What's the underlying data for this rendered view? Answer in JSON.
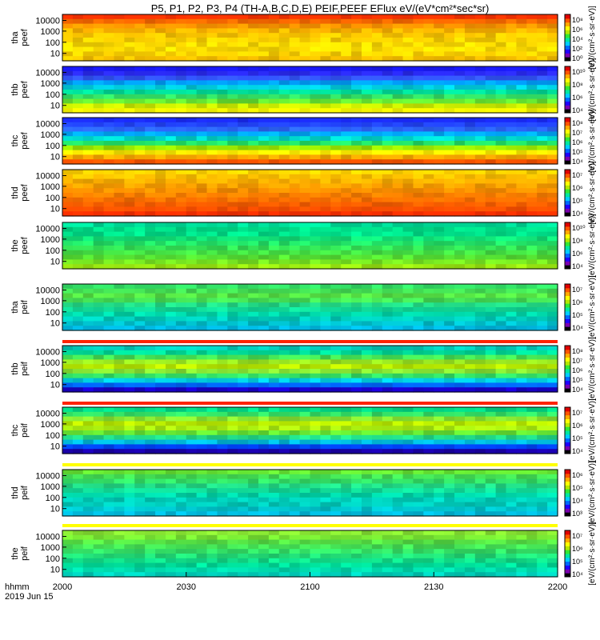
{
  "title": "P5, P1, P2, P3, P4 (TH-A,B,C,D,E) PEIF,PEEF EFlux eV/(eV*cm²*sec*sr)",
  "chart_data": {
    "type": "heatmap",
    "x_ticks": [
      "2000",
      "2030",
      "2100",
      "2130",
      "2200"
    ],
    "x_range": [
      "2000",
      "2200"
    ],
    "x_caption": [
      "hhmm",
      "2019 Jun 15"
    ],
    "colorbar_colors": [
      "#000000",
      "#7a00b0",
      "#1f00ff",
      "#0066ff",
      "#00ccff",
      "#00e6a0",
      "#33e633",
      "#b3e600",
      "#ffff00",
      "#ffaa00",
      "#ff5500",
      "#e00000",
      "#ffffff"
    ],
    "panels": [
      {
        "name": "tha-peef",
        "label": [
          "tha",
          "peef"
        ],
        "y_ticks": [
          "10000",
          "1000",
          "100",
          "10"
        ],
        "cbar_ticks": [
          "10⁸",
          "10⁶",
          "10⁴",
          "10²",
          "10⁰"
        ],
        "unit": "[eV/(cm²·s·sr·eV)]",
        "bands": [
          "#ff3300",
          "#ff6a00",
          "#ff9600",
          "#ffb400",
          "#ffc800",
          "#ffd200",
          "#ffdc00",
          "#ffdc00",
          "#ffd200",
          "#ffc400"
        ]
      },
      {
        "name": "thb-peef",
        "label": [
          "thb",
          "peef"
        ],
        "y_ticks": [
          "10000",
          "1000",
          "100",
          "10"
        ],
        "cbar_ticks": [
          "10¹⁰",
          "10⁸",
          "10⁶",
          "10⁴"
        ],
        "unit": "[eV/(cm²·s·sr·eV)]",
        "bands": [
          "#1a1aff",
          "#2a2af5",
          "#3355ff",
          "#00a0ff",
          "#00ccdd",
          "#00dd99",
          "#33e066",
          "#66e633",
          "#ccee00",
          "#ffff00"
        ]
      },
      {
        "name": "thc-peef",
        "label": [
          "thc",
          "peef"
        ],
        "y_ticks": [
          "10000",
          "1000",
          "100",
          "10"
        ],
        "cbar_ticks": [
          "10⁸",
          "10⁷",
          "10⁶",
          "10⁵",
          "10⁴"
        ],
        "unit": "[eV/(cm²·s·sr·eV)]",
        "bands": [
          "#1a2aff",
          "#2244ff",
          "#2d66ff",
          "#00aaff",
          "#00d8cc",
          "#22e066",
          "#99e600",
          "#ffee00",
          "#ffaa00",
          "#ff5500"
        ]
      },
      {
        "name": "thd-peef",
        "label": [
          "thd",
          "peef"
        ],
        "y_ticks": [
          "10000",
          "1000",
          "100",
          "10"
        ],
        "cbar_ticks": [
          "10⁷",
          "10⁶",
          "10⁵",
          "10⁴"
        ],
        "unit": "[eV/(cm²·s·sr·eV)]",
        "bands": [
          "#ffd000",
          "#ffc000",
          "#ffb000",
          "#ffa000",
          "#ff9000",
          "#ff8000",
          "#ff7000",
          "#ff6000",
          "#ff5000",
          "#ff3000"
        ]
      },
      {
        "name": "the-peef",
        "label": [
          "the",
          "peef"
        ],
        "y_ticks": [
          "10000",
          "1000",
          "100",
          "10"
        ],
        "cbar_ticks": [
          "10¹⁰",
          "10⁸",
          "10⁶",
          "10⁴"
        ],
        "unit": "[eV/(cm²·s·sr·eV)]",
        "bands": [
          "#00dd99",
          "#00dd88",
          "#00e08a",
          "#11e077",
          "#22e066",
          "#33e055",
          "#44e044",
          "#55e033",
          "#77e622",
          "#99e611"
        ]
      },
      {
        "name": "tha-peif",
        "label": [
          "tha",
          "peif"
        ],
        "y_ticks": [
          "10000",
          "1000",
          "100",
          "10"
        ],
        "cbar_ticks": [
          "10⁷",
          "10⁶",
          "10⁵",
          "10⁴"
        ],
        "unit": "[eV/(cm²·s·sr·eV)]",
        "bands": [
          "#33e066",
          "#44e055",
          "#55e044",
          "#44e055",
          "#22dd88",
          "#11dd99",
          "#00d8aa",
          "#00ccbb",
          "#00c0cc",
          "#00b4dd"
        ]
      },
      {
        "name": "thb-peif",
        "label": [
          "thb",
          "peif"
        ],
        "y_ticks": [
          "10000",
          "1000",
          "100",
          "10"
        ],
        "cbar_ticks": [
          "10⁸",
          "10⁷",
          "10⁶",
          "10⁵",
          "10⁴"
        ],
        "unit": "[eV/(cm²·s·sr·eV)]",
        "bands": [
          "#00ccbb",
          "#00dd99",
          "#44e055",
          "#99e622",
          "#bbee00",
          "#88e633",
          "#33e066",
          "#00ccdd",
          "#0066ff",
          "#1a00cc"
        ]
      },
      {
        "name": "thc-peif",
        "label": [
          "thc",
          "peif"
        ],
        "y_ticks": [
          "10000",
          "1000",
          "100",
          "10"
        ],
        "cbar_ticks": [
          "10⁷",
          "10⁶",
          "10⁵",
          "10⁴"
        ],
        "unit": "[eV/(cm²·s·sr·eV)]",
        "bands": [
          "#00dd88",
          "#33e066",
          "#88e633",
          "#bbee00",
          "#aaee11",
          "#66e633",
          "#22dd88",
          "#00bbdd",
          "#0044ff",
          "#1a00aa"
        ]
      },
      {
        "name": "thd-peif",
        "label": [
          "thd",
          "peif"
        ],
        "y_ticks": [
          "10000",
          "1000",
          "100",
          "10"
        ],
        "cbar_ticks": [
          "10⁶",
          "10⁵",
          "10⁴",
          "10³"
        ],
        "unit": "[eV/(cm²·s·sr·eV)]",
        "bands": [
          "#66e633",
          "#44e055",
          "#33e066",
          "#22dd88",
          "#11dd99",
          "#00d8aa",
          "#00d0bb",
          "#00ccbb",
          "#00c4cc",
          "#00bbdd"
        ]
      },
      {
        "name": "the-peif",
        "label": [
          "the",
          "peif"
        ],
        "y_ticks": [
          "10000",
          "1000",
          "100",
          "10"
        ],
        "cbar_ticks": [
          "10⁷",
          "10⁶",
          "10⁵",
          "10⁴"
        ],
        "unit": "[eV/(cm²·s·sr·eV)]",
        "bands": [
          "#88e633",
          "#77e633",
          "#55e044",
          "#44e055",
          "#33e066",
          "#22dd77",
          "#11dd88",
          "#00dd99",
          "#00d8aa",
          "#00d0bb"
        ]
      }
    ]
  }
}
